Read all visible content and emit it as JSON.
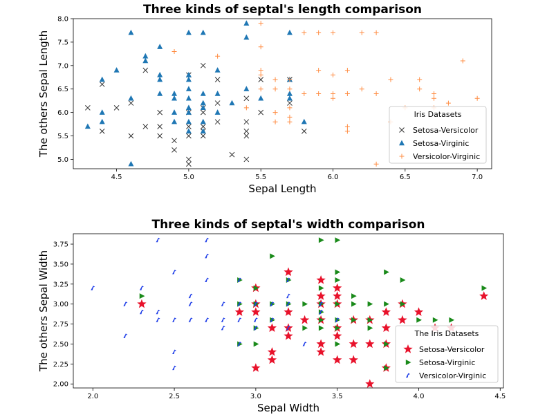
{
  "chart_data": [
    {
      "type": "scatter",
      "title": "Three kinds of septal's length comparison",
      "xlabel": "Sepal Length",
      "ylabel": "The others Sepal Length",
      "xlim": [
        4.2,
        7.1
      ],
      "ylim": [
        4.8,
        8.0
      ],
      "xticks": [
        4.5,
        5.0,
        5.5,
        6.0,
        6.5,
        7.0
      ],
      "yticks": [
        5.0,
        5.5,
        6.0,
        6.5,
        7.0,
        7.5,
        8.0
      ],
      "legend": {
        "title": "Iris Datasets",
        "position": "lower right"
      },
      "series": [
        {
          "name": "Setosa-Versicolor",
          "marker": "x",
          "color": "#333333",
          "points": [
            [
              4.3,
              6.1
            ],
            [
              4.4,
              6.6
            ],
            [
              4.4,
              5.6
            ],
            [
              4.5,
              6.1
            ],
            [
              4.6,
              6.2
            ],
            [
              4.6,
              5.5
            ],
            [
              4.7,
              6.9
            ],
            [
              4.7,
              5.7
            ],
            [
              4.8,
              6.0
            ],
            [
              4.8,
              5.7
            ],
            [
              4.8,
              5.5
            ],
            [
              4.9,
              5.2
            ],
            [
              4.9,
              5.4
            ],
            [
              5.0,
              6.8
            ],
            [
              5.0,
              6.0
            ],
            [
              5.0,
              5.7
            ],
            [
              5.0,
              5.5
            ],
            [
              5.0,
              5.0
            ],
            [
              5.0,
              4.9
            ],
            [
              5.1,
              7.0
            ],
            [
              5.1,
              6.1
            ],
            [
              5.1,
              6.0
            ],
            [
              5.1,
              5.7
            ],
            [
              5.1,
              5.6
            ],
            [
              5.1,
              5.5
            ],
            [
              5.2,
              6.7
            ],
            [
              5.2,
              6.2
            ],
            [
              5.2,
              5.8
            ],
            [
              5.3,
              5.1
            ],
            [
              5.4,
              6.3
            ],
            [
              5.4,
              5.8
            ],
            [
              5.4,
              5.6
            ],
            [
              5.4,
              5.5
            ],
            [
              5.4,
              5.0
            ],
            [
              5.5,
              6.7
            ],
            [
              5.5,
              6.0
            ],
            [
              5.7,
              6.7
            ],
            [
              5.7,
              6.2
            ],
            [
              5.8,
              5.6
            ]
          ]
        },
        {
          "name": "Setosa-Virginic",
          "marker": "^",
          "color": "#1f77b4",
          "points": [
            [
              4.3,
              5.7
            ],
            [
              4.4,
              6.7
            ],
            [
              4.4,
              6.0
            ],
            [
              4.4,
              5.8
            ],
            [
              4.5,
              6.9
            ],
            [
              4.6,
              7.7
            ],
            [
              4.6,
              6.3
            ],
            [
              4.6,
              4.9
            ],
            [
              4.7,
              7.2
            ],
            [
              4.7,
              7.1
            ],
            [
              4.8,
              7.4
            ],
            [
              4.8,
              6.8
            ],
            [
              4.8,
              6.7
            ],
            [
              4.8,
              6.4
            ],
            [
              4.9,
              6.4
            ],
            [
              4.9,
              6.3
            ],
            [
              4.9,
              6.0
            ],
            [
              4.9,
              5.8
            ],
            [
              5.0,
              7.7
            ],
            [
              5.0,
              6.8
            ],
            [
              5.0,
              6.7
            ],
            [
              5.0,
              6.5
            ],
            [
              5.0,
              6.3
            ],
            [
              5.0,
              6.1
            ],
            [
              5.0,
              6.0
            ],
            [
              5.0,
              5.8
            ],
            [
              5.0,
              5.6
            ],
            [
              5.1,
              7.7
            ],
            [
              5.1,
              6.4
            ],
            [
              5.1,
              6.2
            ],
            [
              5.1,
              6.1
            ],
            [
              5.1,
              5.8
            ],
            [
              5.1,
              5.6
            ],
            [
              5.2,
              6.9
            ],
            [
              5.2,
              6.4
            ],
            [
              5.2,
              6.0
            ],
            [
              5.3,
              6.2
            ],
            [
              5.4,
              7.9
            ],
            [
              5.4,
              7.6
            ],
            [
              5.4,
              6.5
            ],
            [
              5.5,
              6.3
            ],
            [
              5.7,
              7.7
            ],
            [
              5.7,
              6.7
            ],
            [
              5.7,
              6.4
            ],
            [
              5.7,
              6.3
            ],
            [
              5.8,
              5.8
            ]
          ]
        },
        {
          "name": "Versicolor-Virginic",
          "marker": "+",
          "color": "#ff8c42",
          "points": [
            [
              4.9,
              7.3
            ],
            [
              5.2,
              7.2
            ],
            [
              5.4,
              6.1
            ],
            [
              5.5,
              7.9
            ],
            [
              5.5,
              7.4
            ],
            [
              5.5,
              6.9
            ],
            [
              5.5,
              6.8
            ],
            [
              5.5,
              6.5
            ],
            [
              5.6,
              6.7
            ],
            [
              5.6,
              6.5
            ],
            [
              5.6,
              6.0
            ],
            [
              5.6,
              5.8
            ],
            [
              5.7,
              6.7
            ],
            [
              5.7,
              6.5
            ],
            [
              5.7,
              6.1
            ],
            [
              5.7,
              5.9
            ],
            [
              5.7,
              5.8
            ],
            [
              5.8,
              7.7
            ],
            [
              5.8,
              6.4
            ],
            [
              5.9,
              7.7
            ],
            [
              5.9,
              6.9
            ],
            [
              5.9,
              6.4
            ],
            [
              6.0,
              7.7
            ],
            [
              6.0,
              6.8
            ],
            [
              6.0,
              6.4
            ],
            [
              6.0,
              6.3
            ],
            [
              6.1,
              6.9
            ],
            [
              6.1,
              6.4
            ],
            [
              6.1,
              5.7
            ],
            [
              6.1,
              5.6
            ],
            [
              6.2,
              7.7
            ],
            [
              6.2,
              6.5
            ],
            [
              6.3,
              7.7
            ],
            [
              6.3,
              6.4
            ],
            [
              6.3,
              4.9
            ],
            [
              6.4,
              6.7
            ],
            [
              6.4,
              5.8
            ],
            [
              6.5,
              6.1
            ],
            [
              6.6,
              6.7
            ],
            [
              6.6,
              6.5
            ],
            [
              6.7,
              6.4
            ],
            [
              6.7,
              6.3
            ],
            [
              6.7,
              6.1
            ],
            [
              6.8,
              6.2
            ],
            [
              6.9,
              7.1
            ],
            [
              7.0,
              6.3
            ]
          ]
        }
      ]
    },
    {
      "type": "scatter",
      "title": "Three kinds of septal's width comparison",
      "xlabel": "Sepal Width",
      "ylabel": "The others Sepal Width",
      "xlim": [
        1.88,
        4.52
      ],
      "ylim": [
        1.95,
        3.88
      ],
      "xticks": [
        2.0,
        2.5,
        3.0,
        3.5,
        4.0,
        4.5
      ],
      "yticks": [
        2.0,
        2.25,
        2.5,
        2.75,
        3.0,
        3.25,
        3.5,
        3.75
      ],
      "legend": {
        "title": "The Iris Datasets",
        "position": "lower right"
      },
      "series": [
        {
          "name": "Setosa-Versicolor",
          "marker": "star",
          "color": "#e8122b",
          "points": [
            [
              2.3,
              3.0
            ],
            [
              2.9,
              2.9
            ],
            [
              3.0,
              3.2
            ],
            [
              3.0,
              3.0
            ],
            [
              3.0,
              2.9
            ],
            [
              3.0,
              2.2
            ],
            [
              3.1,
              2.7
            ],
            [
              3.1,
              2.4
            ],
            [
              3.1,
              2.3
            ],
            [
              3.2,
              3.4
            ],
            [
              3.2,
              2.9
            ],
            [
              3.2,
              2.7
            ],
            [
              3.2,
              2.6
            ],
            [
              3.3,
              2.8
            ],
            [
              3.4,
              3.3
            ],
            [
              3.4,
              3.1
            ],
            [
              3.4,
              3.0
            ],
            [
              3.4,
              2.8
            ],
            [
              3.4,
              2.5
            ],
            [
              3.4,
              2.4
            ],
            [
              3.5,
              3.2
            ],
            [
              3.5,
              3.1
            ],
            [
              3.5,
              3.0
            ],
            [
              3.5,
              2.7
            ],
            [
              3.5,
              2.6
            ],
            [
              3.5,
              2.3
            ],
            [
              3.6,
              2.8
            ],
            [
              3.6,
              2.5
            ],
            [
              3.6,
              2.3
            ],
            [
              3.7,
              2.8
            ],
            [
              3.7,
              2.5
            ],
            [
              3.7,
              2.0
            ],
            [
              3.8,
              2.9
            ],
            [
              3.8,
              2.7
            ],
            [
              3.8,
              2.5
            ],
            [
              3.8,
              2.2
            ],
            [
              3.9,
              3.0
            ],
            [
              3.9,
              2.8
            ],
            [
              4.0,
              2.9
            ],
            [
              4.1,
              2.7
            ],
            [
              4.2,
              2.7
            ],
            [
              4.4,
              3.1
            ]
          ]
        },
        {
          "name": "Setosa-Virginic",
          "marker": ">",
          "color": "#1a8a1a",
          "points": [
            [
              2.3,
              3.1
            ],
            [
              2.9,
              3.3
            ],
            [
              2.9,
              3.0
            ],
            [
              2.9,
              2.5
            ],
            [
              3.0,
              3.2
            ],
            [
              3.0,
              3.0
            ],
            [
              3.0,
              2.7
            ],
            [
              3.0,
              2.5
            ],
            [
              3.1,
              3.6
            ],
            [
              3.1,
              3.0
            ],
            [
              3.1,
              2.8
            ],
            [
              3.2,
              3.3
            ],
            [
              3.2,
              3.0
            ],
            [
              3.3,
              3.0
            ],
            [
              3.3,
              2.7
            ],
            [
              3.4,
              3.8
            ],
            [
              3.4,
              3.2
            ],
            [
              3.4,
              3.0
            ],
            [
              3.4,
              2.9
            ],
            [
              3.4,
              2.8
            ],
            [
              3.4,
              2.7
            ],
            [
              3.5,
              3.8
            ],
            [
              3.5,
              3.4
            ],
            [
              3.5,
              3.3
            ],
            [
              3.5,
              3.0
            ],
            [
              3.5,
              2.8
            ],
            [
              3.5,
              2.7
            ],
            [
              3.5,
              2.5
            ],
            [
              3.6,
              3.1
            ],
            [
              3.6,
              3.0
            ],
            [
              3.6,
              2.8
            ],
            [
              3.7,
              3.0
            ],
            [
              3.7,
              2.8
            ],
            [
              3.7,
              2.7
            ],
            [
              3.8,
              3.4
            ],
            [
              3.8,
              3.0
            ],
            [
              3.8,
              2.5
            ],
            [
              3.8,
              2.2
            ],
            [
              3.9,
              3.3
            ],
            [
              3.9,
              3.0
            ],
            [
              4.0,
              2.8
            ],
            [
              4.1,
              2.8
            ],
            [
              4.2,
              2.8
            ],
            [
              4.4,
              3.2
            ]
          ]
        },
        {
          "name": "Versicolor-Virginic",
          "marker": "wedge",
          "color": "#1f3ee8",
          "points": [
            [
              2.0,
              3.2
            ],
            [
              2.2,
              3.0
            ],
            [
              2.2,
              2.6
            ],
            [
              2.3,
              3.2
            ],
            [
              2.3,
              2.9
            ],
            [
              2.4,
              3.8
            ],
            [
              2.4,
              2.9
            ],
            [
              2.4,
              2.8
            ],
            [
              2.5,
              3.4
            ],
            [
              2.5,
              2.8
            ],
            [
              2.5,
              2.4
            ],
            [
              2.5,
              2.2
            ],
            [
              2.6,
              3.1
            ],
            [
              2.6,
              3.0
            ],
            [
              2.6,
              2.8
            ],
            [
              2.7,
              3.8
            ],
            [
              2.7,
              3.6
            ],
            [
              2.7,
              3.3
            ],
            [
              2.7,
              2.8
            ],
            [
              2.8,
              3.0
            ],
            [
              2.8,
              2.8
            ],
            [
              2.8,
              2.7
            ],
            [
              2.9,
              3.3
            ],
            [
              2.9,
              3.0
            ],
            [
              2.9,
              2.8
            ],
            [
              2.9,
              2.5
            ],
            [
              3.0,
              3.0
            ],
            [
              3.0,
              2.8
            ],
            [
              3.0,
              2.7
            ],
            [
              3.1,
              3.0
            ],
            [
              3.1,
              2.8
            ],
            [
              3.2,
              3.3
            ],
            [
              3.2,
              3.1
            ],
            [
              3.2,
              3.0
            ],
            [
              3.2,
              2.7
            ],
            [
              3.3,
              2.5
            ],
            [
              3.4,
              3.0
            ],
            [
              3.4,
              2.9
            ],
            [
              3.5,
              2.8
            ]
          ]
        }
      ]
    }
  ]
}
